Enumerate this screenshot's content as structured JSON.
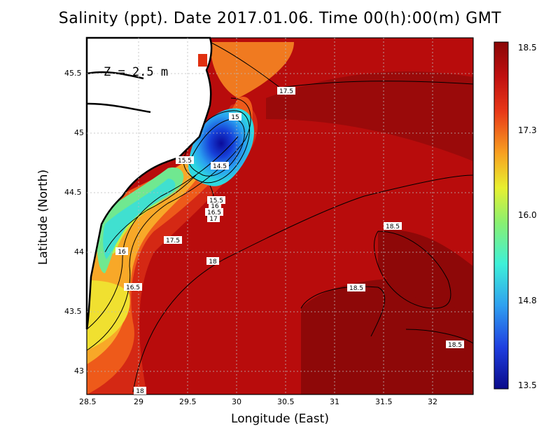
{
  "title": "Salinity (ppt). Date 2017.01.06. Time 00(h):00(m) GMT",
  "xlabel": "Longitude (East)",
  "ylabel": "Latitude (North)",
  "depth_label": "Z = 2.5 m",
  "x_ticks": [
    "28.5",
    "29",
    "29.5",
    "30",
    "30.5",
    "31",
    "31.5",
    "32"
  ],
  "y_ticks": [
    "45.5",
    "45",
    "44.5",
    "44",
    "43.5",
    "43"
  ],
  "colorbar": {
    "ticks": [
      "18.5",
      "17.3",
      "16.0",
      "14.8",
      "13.5"
    ],
    "range": [
      13.5,
      18.5
    ],
    "colors": [
      "#0a0a8a",
      "#1f3fe0",
      "#2fa0f0",
      "#3ef0d8",
      "#8af070",
      "#e8f030",
      "#f8a020",
      "#e83818",
      "#c01010",
      "#8a0606"
    ]
  },
  "contour_labels": [
    "15",
    "14.5",
    "15.5",
    "15.5",
    "16",
    "16.5",
    "17",
    "17.5",
    "17.5",
    "16",
    "16.5",
    "18",
    "18.5",
    "18.5",
    "18.5",
    "18"
  ],
  "map_extent": {
    "lon": [
      28.5,
      32.4
    ],
    "lat": [
      42.8,
      45.8
    ]
  }
}
